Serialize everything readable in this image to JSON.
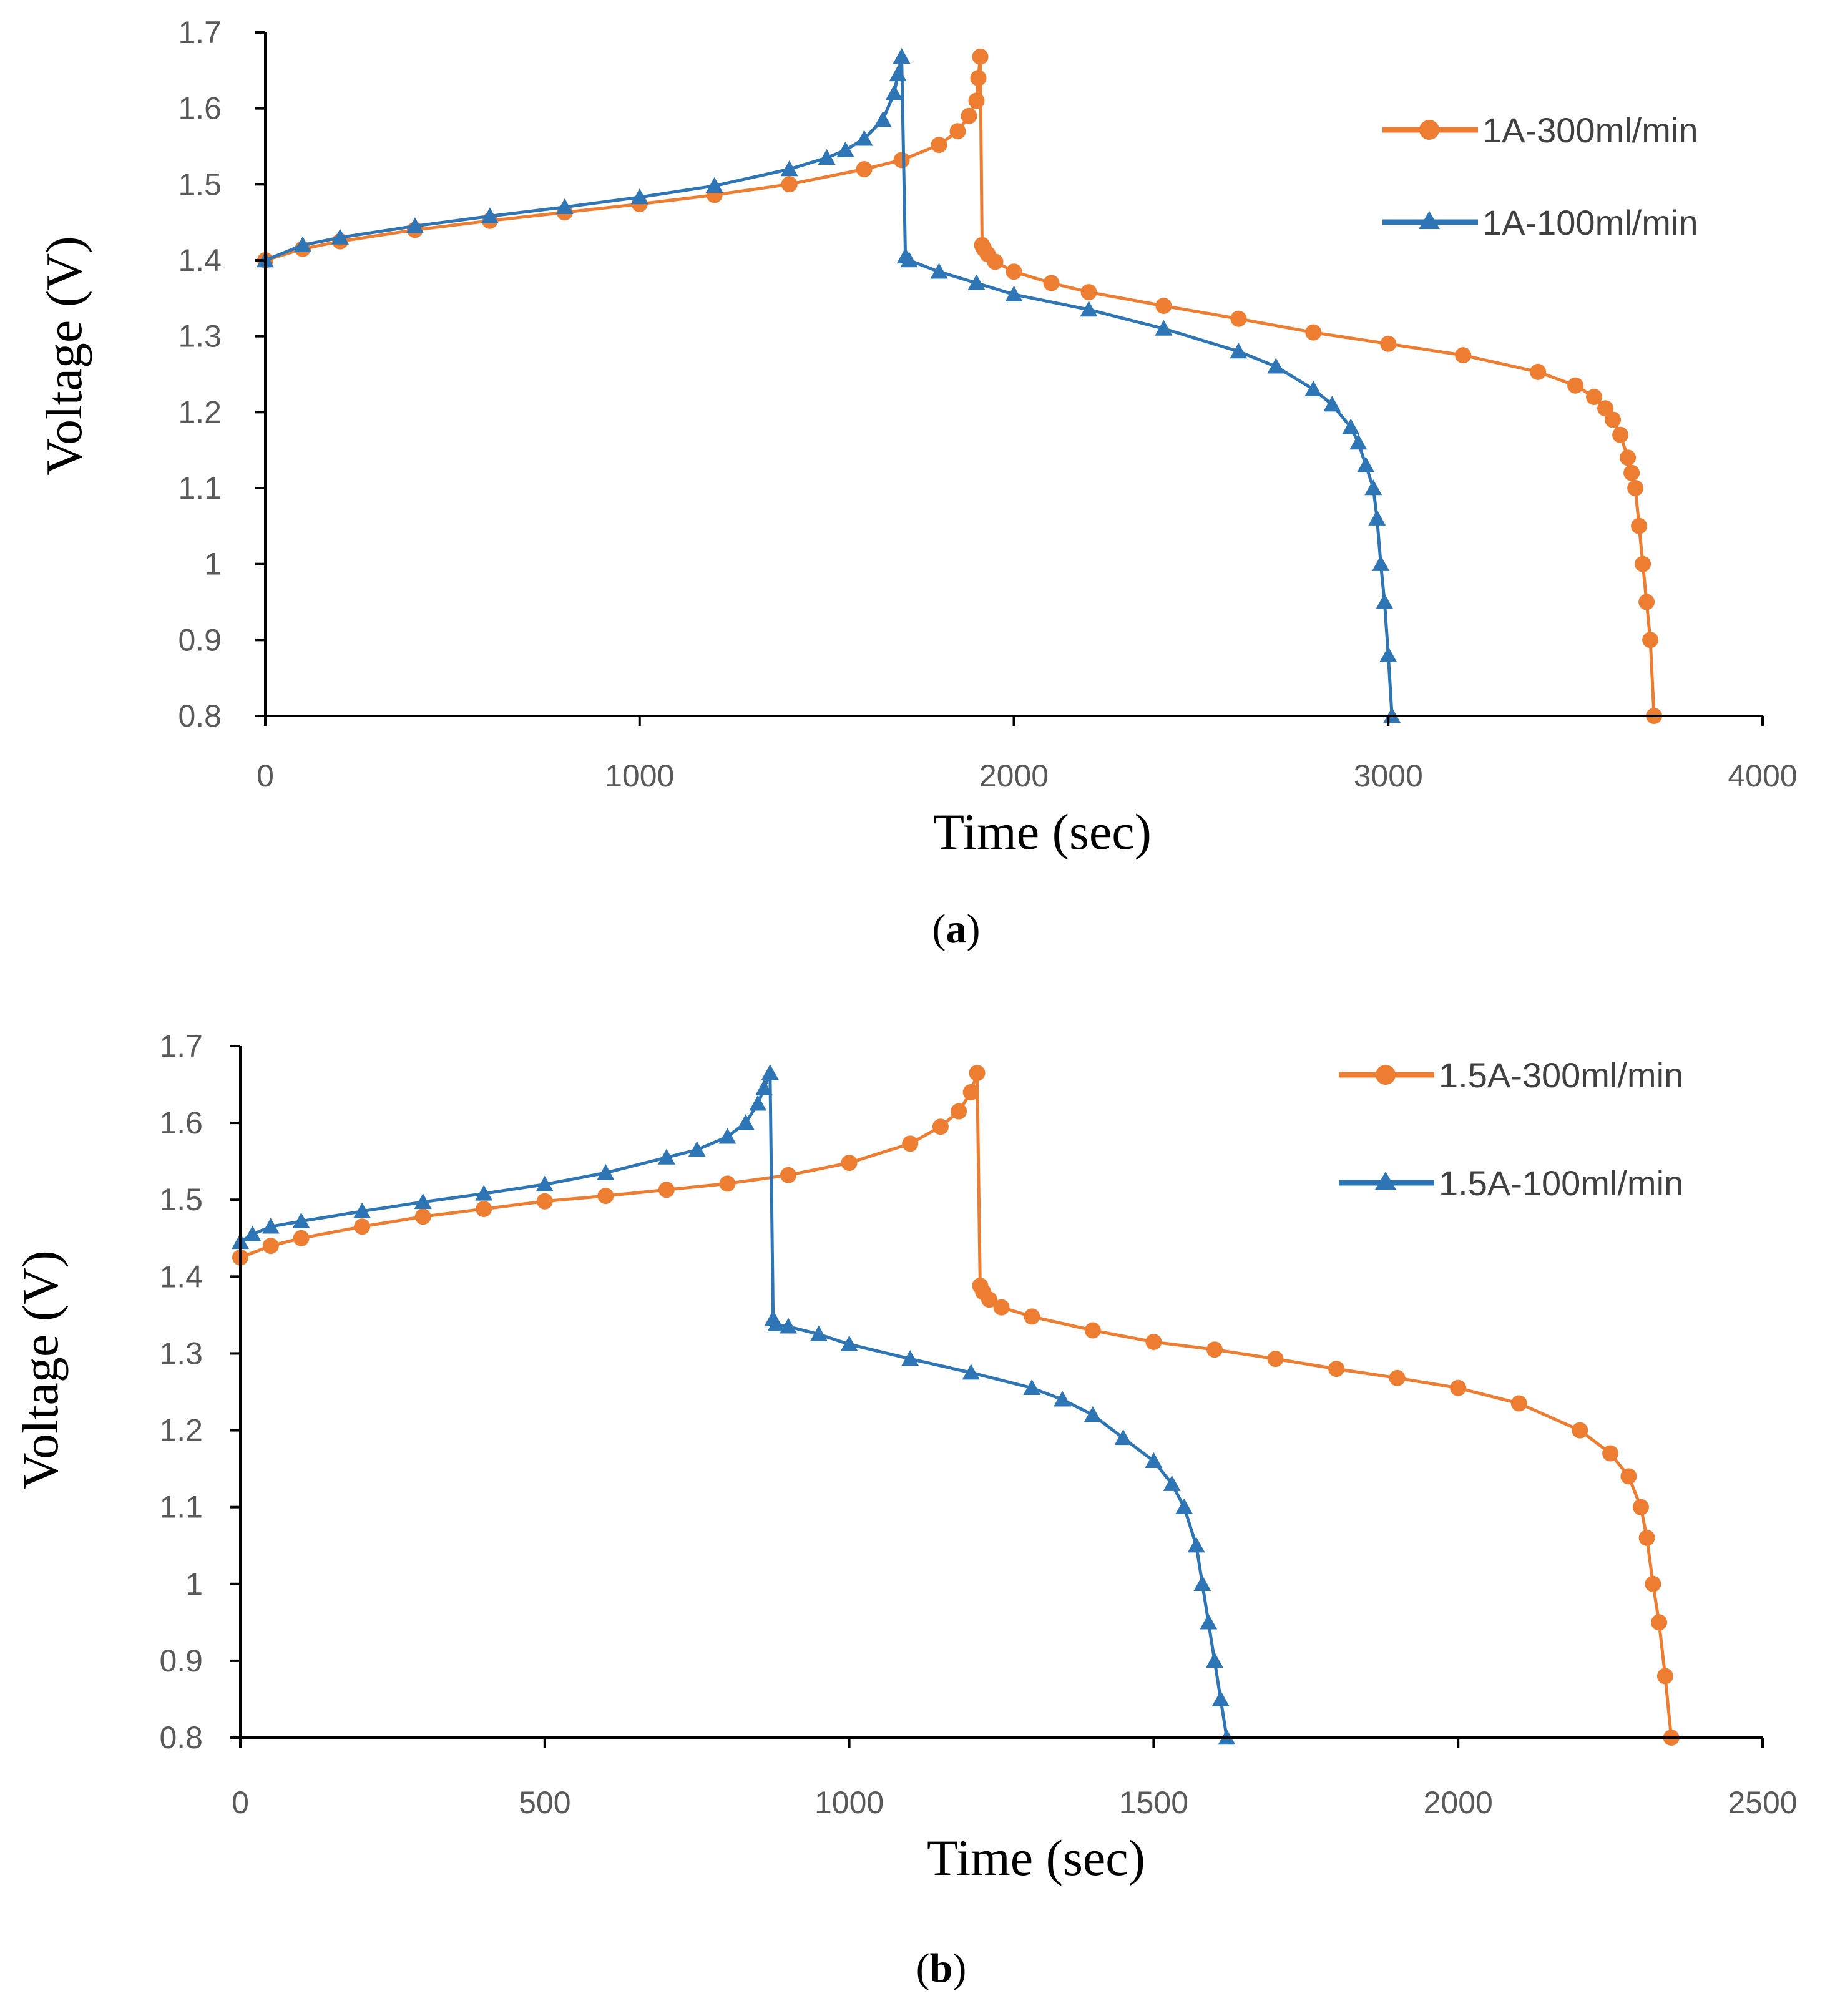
{
  "chart_data": [
    {
      "type": "line",
      "panel_label": "a",
      "panel_label_open": "(",
      "panel_label_close": ")",
      "xlabel": "Time (sec)",
      "ylabel": "Voltage (V)",
      "xlim": [
        0,
        4000
      ],
      "ylim": [
        0.8,
        1.7
      ],
      "xticks": [
        0,
        1000,
        2000,
        3000,
        4000
      ],
      "xtick_labels": [
        "0",
        "1000",
        "2000",
        "3000",
        "4000"
      ],
      "yticks": [
        0.8,
        0.9,
        1.0,
        1.1,
        1.2,
        1.3,
        1.4,
        1.5,
        1.6,
        1.7
      ],
      "ytick_labels": [
        "0.8",
        "0.9",
        "1",
        "1.1",
        "1.2",
        "1.3",
        "1.4",
        "1.5",
        "1.6",
        "1.7"
      ],
      "grid": false,
      "legend_position": "top-right",
      "series": [
        {
          "name": "1A-300ml/min",
          "color": "#ED7D31",
          "marker": "circle",
          "x": [
            0,
            100,
            200,
            400,
            600,
            800,
            1000,
            1200,
            1400,
            1600,
            1700,
            1800,
            1850,
            1880,
            1900,
            1905,
            1910,
            1915,
            1920,
            1930,
            1950,
            2000,
            2100,
            2200,
            2400,
            2600,
            2800,
            3000,
            3200,
            3400,
            3500,
            3550,
            3580,
            3600,
            3620,
            3640,
            3650,
            3660,
            3670,
            3680,
            3690,
            3700,
            3710
          ],
          "values": [
            1.4,
            1.415,
            1.425,
            1.44,
            1.452,
            1.463,
            1.474,
            1.486,
            1.5,
            1.52,
            1.532,
            1.552,
            1.57,
            1.59,
            1.61,
            1.64,
            1.668,
            1.42,
            1.415,
            1.408,
            1.398,
            1.385,
            1.37,
            1.358,
            1.34,
            1.323,
            1.305,
            1.29,
            1.275,
            1.253,
            1.235,
            1.22,
            1.205,
            1.19,
            1.17,
            1.14,
            1.12,
            1.1,
            1.05,
            1.0,
            0.95,
            0.9,
            0.8
          ]
        },
        {
          "name": "1A-100ml/min",
          "color": "#2E75B6",
          "marker": "triangle",
          "x": [
            0,
            100,
            200,
            400,
            600,
            800,
            1000,
            1200,
            1400,
            1500,
            1550,
            1600,
            1650,
            1680,
            1690,
            1700,
            1710,
            1720,
            1800,
            1900,
            2000,
            2200,
            2400,
            2600,
            2700,
            2800,
            2850,
            2900,
            2920,
            2940,
            2960,
            2970,
            2980,
            2990,
            3000,
            3010
          ],
          "values": [
            1.4,
            1.42,
            1.43,
            1.445,
            1.458,
            1.47,
            1.483,
            1.498,
            1.52,
            1.535,
            1.545,
            1.56,
            1.585,
            1.62,
            1.645,
            1.668,
            1.405,
            1.4,
            1.385,
            1.37,
            1.355,
            1.335,
            1.31,
            1.28,
            1.26,
            1.23,
            1.21,
            1.18,
            1.16,
            1.13,
            1.1,
            1.06,
            1.0,
            0.95,
            0.88,
            0.8
          ]
        }
      ]
    },
    {
      "type": "line",
      "panel_label": "b",
      "panel_label_open": "(",
      "panel_label_close": ")",
      "xlabel": "Time (sec)",
      "ylabel": "Voltage (V)",
      "xlim": [
        0,
        2500
      ],
      "ylim": [
        0.8,
        1.7
      ],
      "xticks": [
        0,
        500,
        1000,
        1500,
        2000,
        2500
      ],
      "xtick_labels": [
        "0",
        "500",
        "1000",
        "1500",
        "2000",
        "2500"
      ],
      "yticks": [
        0.8,
        0.9,
        1.0,
        1.1,
        1.2,
        1.3,
        1.4,
        1.5,
        1.6,
        1.7
      ],
      "ytick_labels": [
        "0.8",
        "0.9",
        "1",
        "1.1",
        "1.2",
        "1.3",
        "1.4",
        "1.5",
        "1.6",
        "1.7"
      ],
      "grid": false,
      "legend_position": "top-right",
      "series": [
        {
          "name": "1.5A-300ml/min",
          "color": "#ED7D31",
          "marker": "circle",
          "x": [
            0,
            50,
            100,
            200,
            300,
            400,
            500,
            600,
            700,
            800,
            900,
            1000,
            1100,
            1150,
            1180,
            1200,
            1210,
            1215,
            1220,
            1230,
            1250,
            1300,
            1400,
            1500,
            1600,
            1700,
            1800,
            1900,
            2000,
            2100,
            2200,
            2250,
            2280,
            2300,
            2310,
            2320,
            2330,
            2340,
            2350
          ],
          "values": [
            1.425,
            1.44,
            1.45,
            1.465,
            1.478,
            1.488,
            1.498,
            1.505,
            1.513,
            1.521,
            1.532,
            1.548,
            1.573,
            1.595,
            1.615,
            1.64,
            1.665,
            1.388,
            1.38,
            1.37,
            1.36,
            1.348,
            1.33,
            1.315,
            1.305,
            1.293,
            1.28,
            1.268,
            1.255,
            1.235,
            1.2,
            1.17,
            1.14,
            1.1,
            1.06,
            1.0,
            0.95,
            0.88,
            0.8
          ]
        },
        {
          "name": "1.5A-100ml/min",
          "color": "#2E75B6",
          "marker": "triangle",
          "x": [
            0,
            20,
            50,
            100,
            200,
            300,
            400,
            500,
            600,
            700,
            750,
            800,
            830,
            850,
            860,
            870,
            875,
            880,
            900,
            950,
            1000,
            1100,
            1200,
            1300,
            1350,
            1400,
            1450,
            1500,
            1530,
            1550,
            1570,
            1580,
            1590,
            1600,
            1610,
            1620
          ],
          "values": [
            1.445,
            1.455,
            1.465,
            1.472,
            1.485,
            1.497,
            1.508,
            1.52,
            1.535,
            1.555,
            1.565,
            1.582,
            1.6,
            1.625,
            1.645,
            1.665,
            1.345,
            1.338,
            1.335,
            1.325,
            1.312,
            1.293,
            1.275,
            1.255,
            1.24,
            1.22,
            1.19,
            1.16,
            1.13,
            1.1,
            1.05,
            1.0,
            0.95,
            0.9,
            0.85,
            0.8
          ]
        }
      ]
    }
  ]
}
